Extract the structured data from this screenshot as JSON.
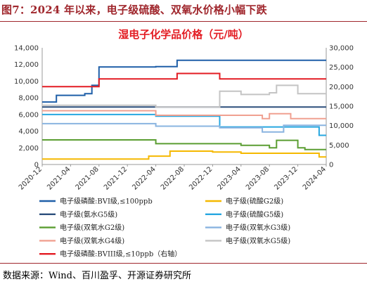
{
  "figure": {
    "title": "图7：2024 年以来，电子级硫酸、双氧水价格小幅下跌",
    "source": "数据来源：Wind、百川盈孚、开源证券研究所"
  },
  "chart_data": {
    "type": "line",
    "title": "湿电子化学品价格（元/吨）",
    "xlabel": "",
    "ylabel": "",
    "x_range": [
      "2020-12",
      "2024-04"
    ],
    "x_ticks": [
      "2020-12",
      "2021-04",
      "2021-08",
      "2021-12",
      "2022-04",
      "2022-08",
      "2022-12",
      "2023-04",
      "2023-08",
      "2023-12",
      "2024-04"
    ],
    "ylim": [
      0,
      14000
    ],
    "y_ticks": [
      0,
      2000,
      4000,
      6000,
      8000,
      10000,
      12000,
      14000
    ],
    "y2lim": [
      0,
      30000
    ],
    "y2_ticks": [
      0,
      5000,
      10000,
      15000,
      20000,
      25000,
      30000
    ],
    "legend_position": "bottom",
    "grid": false,
    "series": [
      {
        "name": "电子级磷酸:BVI级,≤100ppb",
        "color": "#1f5fa8",
        "axis": "left",
        "points": [
          [
            "2020-12",
            7500
          ],
          [
            "2021-02",
            7500
          ],
          [
            "2021-02",
            8300
          ],
          [
            "2021-06",
            8300
          ],
          [
            "2021-06",
            8500
          ],
          [
            "2021-07",
            8500
          ],
          [
            "2021-07",
            9500
          ],
          [
            "2021-08",
            9500
          ],
          [
            "2021-08",
            11700
          ],
          [
            "2022-04",
            11700
          ],
          [
            "2022-04",
            11750
          ],
          [
            "2022-07",
            11750
          ],
          [
            "2022-07",
            12500
          ],
          [
            "2024-04",
            12500
          ]
        ]
      },
      {
        "name": "电子级(硫酸G2级)",
        "color": "#f5b800",
        "axis": "left",
        "points": [
          [
            "2020-12",
            650
          ],
          [
            "2022-03",
            650
          ],
          [
            "2022-03",
            1000
          ],
          [
            "2022-06",
            1000
          ],
          [
            "2022-06",
            1600
          ],
          [
            "2022-12",
            1600
          ],
          [
            "2022-12",
            1500
          ],
          [
            "2023-04",
            1500
          ],
          [
            "2023-04",
            1350
          ],
          [
            "2024-03",
            1350
          ],
          [
            "2024-03",
            900
          ],
          [
            "2024-04",
            900
          ]
        ]
      },
      {
        "name": "电子级(氨水G5级)",
        "color": "#2d4f7c",
        "axis": "left",
        "points": [
          [
            "2020-12",
            6900
          ],
          [
            "2024-04",
            6900
          ]
        ]
      },
      {
        "name": "电子级(硫酸G5级)",
        "color": "#27a7e0",
        "axis": "left",
        "points": [
          [
            "2020-12",
            6000
          ],
          [
            "2022-04",
            6000
          ],
          [
            "2022-04",
            5800
          ],
          [
            "2023-01",
            5800
          ],
          [
            "2023-01",
            4500
          ],
          [
            "2024-03",
            4500
          ],
          [
            "2024-03",
            3500
          ],
          [
            "2024-04",
            3500
          ]
        ]
      },
      {
        "name": "电子级(双氧水G2级)",
        "color": "#5b9e32",
        "axis": "left",
        "points": [
          [
            "2020-12",
            2950
          ],
          [
            "2022-04",
            2950
          ],
          [
            "2022-04",
            2500
          ],
          [
            "2023-04",
            2500
          ],
          [
            "2023-04",
            2300
          ],
          [
            "2023-08",
            2300
          ],
          [
            "2023-08",
            2000
          ],
          [
            "2023-09",
            2000
          ],
          [
            "2023-09",
            2900
          ],
          [
            "2023-12",
            2900
          ],
          [
            "2023-12",
            2000
          ],
          [
            "2024-01",
            2000
          ],
          [
            "2024-01",
            1800
          ],
          [
            "2024-04",
            1800
          ]
        ]
      },
      {
        "name": "电子级(双氧水G3级)",
        "color": "#8ab4e0",
        "axis": "left",
        "points": [
          [
            "2020-12",
            4900
          ],
          [
            "2022-04",
            4900
          ],
          [
            "2022-04",
            4600
          ],
          [
            "2023-01",
            4600
          ],
          [
            "2023-01",
            4400
          ],
          [
            "2023-07",
            4400
          ],
          [
            "2023-07",
            3900
          ],
          [
            "2023-10",
            3900
          ],
          [
            "2023-10",
            4700
          ],
          [
            "2024-04",
            4700
          ]
        ]
      },
      {
        "name": "电子级(双氧水G4级)",
        "color": "#f0a090",
        "axis": "left",
        "points": [
          [
            "2020-12",
            6450
          ],
          [
            "2022-04",
            6450
          ],
          [
            "2022-04",
            5900
          ],
          [
            "2023-07",
            5900
          ],
          [
            "2023-07",
            5500
          ],
          [
            "2023-08",
            5500
          ],
          [
            "2023-08",
            6100
          ],
          [
            "2023-11",
            6100
          ],
          [
            "2023-11",
            5500
          ],
          [
            "2024-04",
            5500
          ]
        ]
      },
      {
        "name": "电子级(双氧水G5级)",
        "color": "#c4c4c4",
        "axis": "left",
        "points": [
          [
            "2020-12",
            7100
          ],
          [
            "2022-04",
            7100
          ],
          [
            "2022-04",
            6900
          ],
          [
            "2023-01",
            6900
          ],
          [
            "2023-01",
            8800
          ],
          [
            "2023-04",
            8800
          ],
          [
            "2023-04",
            8400
          ],
          [
            "2023-08",
            8400
          ],
          [
            "2023-08",
            8600
          ],
          [
            "2023-09",
            8600
          ],
          [
            "2023-09",
            9500
          ],
          [
            "2023-12",
            9500
          ],
          [
            "2023-12",
            8500
          ],
          [
            "2024-04",
            8500
          ]
        ]
      },
      {
        "name": "电子级磷酸:BVIII级,≤10ppb（右轴）",
        "color": "#e31c23",
        "axis": "right",
        "points": [
          [
            "2020-12",
            20000
          ],
          [
            "2021-08",
            20000
          ],
          [
            "2021-08",
            22000
          ],
          [
            "2022-07",
            22000
          ],
          [
            "2022-07",
            23400
          ],
          [
            "2023-01",
            23400
          ],
          [
            "2023-01",
            22000
          ],
          [
            "2024-04",
            22000
          ]
        ]
      }
    ]
  }
}
